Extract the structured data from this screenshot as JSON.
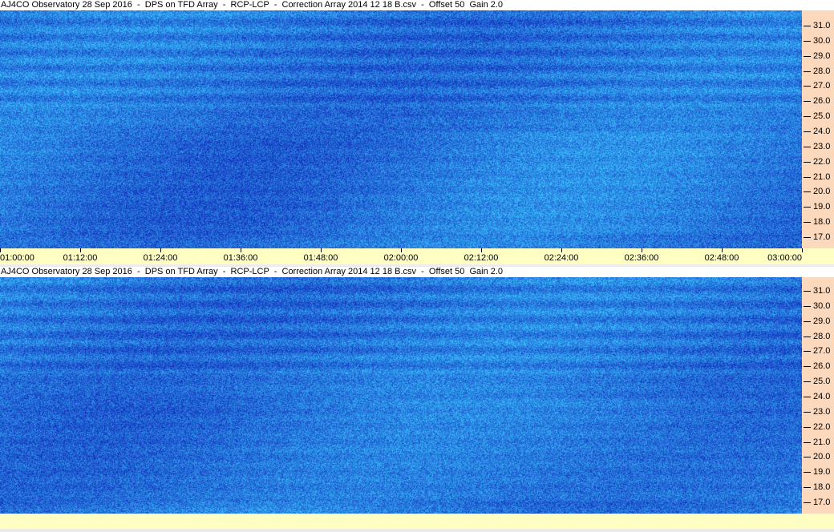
{
  "panels": [
    {
      "title": "AJ4CO Observatory 28 Sep 2016  -  DPS on TFD Array  -  RCP-LCP  -  Correction Array 2014 12 18 B.csv  -  Offset 50  Gain 2.0"
    },
    {
      "title": "AJ4CO Observatory 28 Sep 2016  -  DPS on TFD Array  -  RCP-LCP  -  Correction Array 2014 12 18 B.csv  -  Offset 50  Gain 2.0"
    }
  ],
  "chart_data": {
    "type": "heatmap",
    "description_colors": {
      "low": "#1a3ccc",
      "mid": "#2266ee",
      "high": "#33aaff"
    },
    "y_ticks": [
      "31.0",
      "30.0",
      "29.0",
      "28.0",
      "27.0",
      "26.0",
      "25.0",
      "24.0",
      "23.0",
      "22.0",
      "21.0",
      "20.0",
      "19.0",
      "18.0",
      "17.0"
    ],
    "x_ticks": [
      "01:00:00",
      "01:12:00",
      "01:24:00",
      "01:36:00",
      "01:48:00",
      "02:00:00",
      "02:12:00",
      "02:24:00",
      "02:36:00",
      "02:48:00",
      "03:00:00"
    ],
    "ylim": [
      16.5,
      32.0
    ],
    "xlim": [
      "01:00:00",
      "03:00:00"
    ]
  },
  "colors": {
    "y_axis_bg": "#fcd9bc",
    "x_axis_bg": "#ffffc4"
  }
}
